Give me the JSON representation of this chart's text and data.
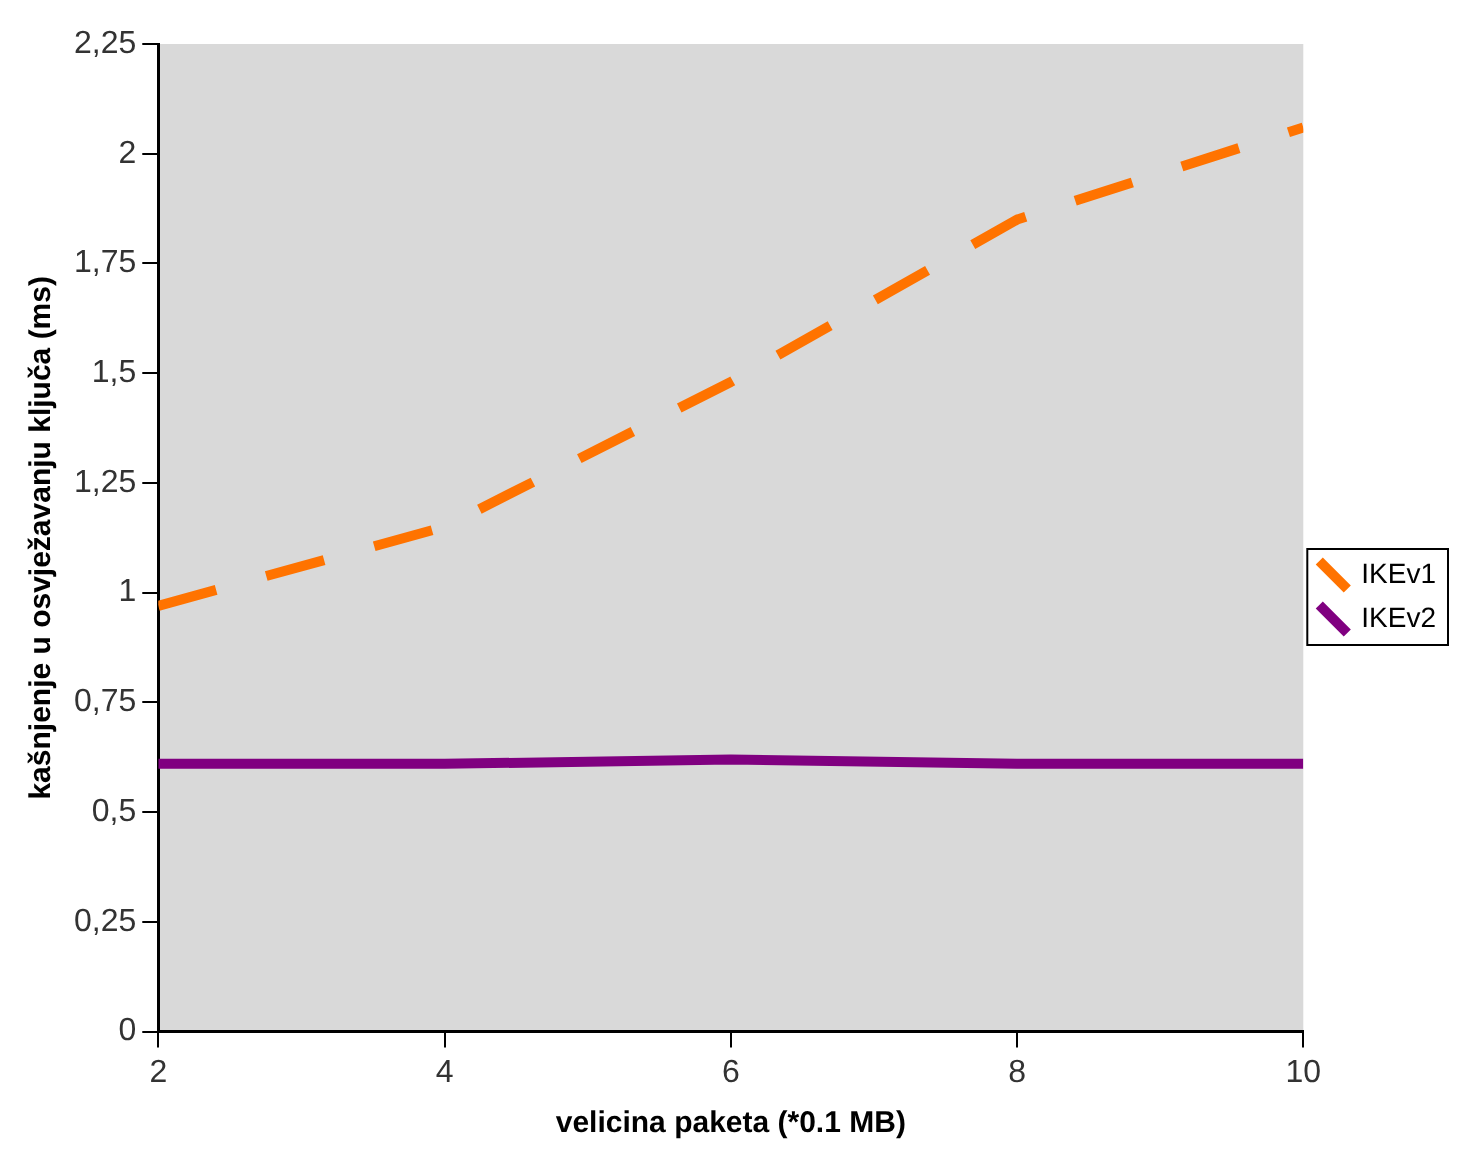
{
  "chart_data": {
    "type": "line",
    "xlabel": "velicina paketa (*0.1 MB)",
    "ylabel": "kašnjenje u osvježavanju ključa (ms)",
    "x": [
      2,
      4,
      6,
      8,
      10
    ],
    "series": [
      {
        "name": "IKEv1",
        "color": "#ff7300",
        "line_style": "dashed",
        "values": [
          0.97,
          1.15,
          1.48,
          1.85,
          2.06
        ]
      },
      {
        "name": "IKEv2",
        "color": "#800080",
        "line_style": "solid",
        "values": [
          0.61,
          0.61,
          0.62,
          0.61,
          0.61
        ]
      }
    ],
    "xlim": [
      2,
      10
    ],
    "xticks": [
      2,
      4,
      6,
      8,
      10
    ],
    "ylim": [
      0,
      2.25
    ],
    "yticks": [
      0,
      {
        "value": 0.25,
        "label": "0,25"
      },
      {
        "value": 0.5,
        "label": "0,5"
      },
      {
        "value": 0.75,
        "label": "0,75"
      },
      1,
      {
        "value": 1.25,
        "label": "1,25"
      },
      {
        "value": 1.5,
        "label": "1,5"
      },
      {
        "value": 1.75,
        "label": "1,75"
      },
      2,
      {
        "value": 2.25,
        "label": "2,25"
      }
    ],
    "grid": false,
    "legend": "right",
    "marker": "none"
  }
}
